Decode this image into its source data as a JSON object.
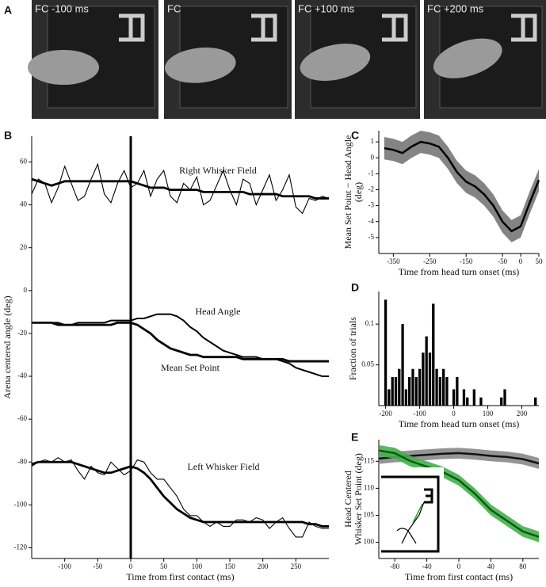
{
  "panels": [
    "A",
    "B",
    "C",
    "D",
    "E"
  ],
  "frames": [
    "FC  -100 ms",
    "FC",
    "FC  +100 ms",
    "FC  +200 ms"
  ],
  "chart_data": [
    {
      "type": "line",
      "xlabel": "Time from first contact (ms)",
      "ylabel": "Arena centered angle (deg)",
      "annotations": [
        "Right Whisker Field",
        "Head Angle",
        "Mean Set Point",
        "Left Whisker Field"
      ],
      "vline": 0,
      "xlim": [
        -150,
        300
      ],
      "xticks": [
        -100,
        -50,
        0,
        50,
        100,
        150,
        200,
        250
      ],
      "ylim": [
        -125,
        72
      ],
      "yticks": [
        60,
        40,
        20,
        0,
        -20,
        -40,
        -60,
        -80,
        -100,
        -120
      ],
      "x": [
        -150,
        -140,
        -130,
        -120,
        -110,
        -100,
        -90,
        -80,
        -70,
        -60,
        -50,
        -40,
        -30,
        -20,
        -10,
        0,
        10,
        20,
        30,
        40,
        50,
        60,
        70,
        80,
        90,
        100,
        110,
        120,
        130,
        140,
        150,
        160,
        170,
        180,
        190,
        200,
        210,
        220,
        230,
        240,
        250,
        260,
        270,
        280,
        290,
        300
      ],
      "series": [
        {
          "color": "#000",
          "values": [
            45,
            52,
            50,
            41,
            48,
            58,
            50,
            42,
            44,
            52,
            59,
            45,
            41,
            50,
            56,
            48,
            50,
            56,
            44,
            52,
            56,
            44,
            41,
            50,
            47,
            53,
            40,
            42,
            49,
            56,
            47,
            40,
            52,
            50,
            40,
            47,
            54,
            42,
            47,
            54,
            39,
            36,
            43,
            42,
            44,
            43
          ]
        },
        {
          "color": "#000",
          "values": [
            52,
            51,
            50,
            49,
            50,
            51,
            51,
            51,
            51,
            51,
            51,
            51,
            51,
            51,
            51,
            51,
            50,
            49,
            48,
            48,
            48,
            47,
            47,
            47,
            47,
            47,
            46,
            46,
            46,
            46,
            46,
            46,
            46,
            45,
            45,
            45,
            45,
            45,
            44,
            44,
            44,
            44,
            44,
            43,
            43,
            43
          ]
        },
        {
          "color": "#000",
          "values": [
            -15,
            -15,
            -15,
            -15,
            -15,
            -16,
            -16,
            -15,
            -15,
            -15,
            -15,
            -15,
            -14,
            -14,
            -14,
            -14,
            -13,
            -13,
            -12,
            -11,
            -11,
            -11,
            -12,
            -14,
            -17,
            -19,
            -22,
            -24,
            -26,
            -28,
            -29,
            -30,
            -31,
            -31,
            -31,
            -32,
            -32,
            -32,
            -33,
            -34,
            -36,
            -37,
            -38,
            -39,
            -40,
            -40
          ]
        },
        {
          "color": "#000",
          "values": [
            -15,
            -15,
            -15,
            -15,
            -16,
            -16,
            -16,
            -16,
            -16,
            -16,
            -16,
            -16,
            -16,
            -15,
            -15,
            -15,
            -16,
            -18,
            -20,
            -23,
            -25,
            -27,
            -28,
            -29,
            -30,
            -30,
            -31,
            -31,
            -31,
            -31,
            -31,
            -31,
            -32,
            -32,
            -32,
            -32,
            -32,
            -32,
            -32,
            -33,
            -33,
            -33,
            -33,
            -33,
            -33,
            -33
          ]
        },
        {
          "color": "#000",
          "values": [
            -82,
            -80,
            -79,
            -80,
            -78,
            -80,
            -79,
            -84,
            -88,
            -82,
            -85,
            -86,
            -80,
            -83,
            -86,
            -84,
            -79,
            -80,
            -85,
            -88,
            -88,
            -92,
            -96,
            -102,
            -105,
            -105,
            -108,
            -110,
            -108,
            -110,
            -110,
            -107,
            -107,
            -108,
            -106,
            -107,
            -111,
            -108,
            -106,
            -111,
            -115,
            -115,
            -108,
            -110,
            -111,
            -111
          ]
        },
        {
          "color": "#000",
          "values": [
            -81,
            -80,
            -80,
            -80,
            -80,
            -80,
            -80,
            -81,
            -82,
            -83,
            -84,
            -85,
            -85,
            -84,
            -83,
            -82,
            -83,
            -85,
            -88,
            -92,
            -96,
            -99,
            -102,
            -104,
            -106,
            -107,
            -108,
            -108,
            -108,
            -108,
            -108,
            -108,
            -108,
            -108,
            -108,
            -108,
            -108,
            -108,
            -108,
            -108,
            -108,
            -108,
            -109,
            -109,
            -110,
            -110
          ]
        }
      ]
    },
    {
      "type": "line",
      "xlabel": "Time from head turn onset (ms)",
      "ylabel": [
        "Mean Set Point − Head Angle",
        "(deg)"
      ],
      "xlim": [
        -390,
        50
      ],
      "xticks": [
        -350,
        -250,
        -150,
        -50,
        0,
        50
      ],
      "ylim": [
        -6,
        1.7
      ],
      "yticks": [
        1,
        0,
        -1,
        -2,
        -3,
        -4,
        -5
      ],
      "x": [
        -375,
        -350,
        -325,
        -300,
        -275,
        -250,
        -225,
        -200,
        -175,
        -150,
        -125,
        -100,
        -75,
        -50,
        -25,
        0,
        25,
        50
      ],
      "series": [
        {
          "color": "#000",
          "band": "#777",
          "values": [
            0.6,
            0.5,
            0.3,
            0.7,
            1.0,
            0.9,
            0.7,
            0.0,
            -0.9,
            -1.5,
            -1.8,
            -2.3,
            -3.0,
            -4.0,
            -4.6,
            -4.3,
            -2.8,
            -1.4
          ],
          "errors": [
            0.7,
            0.7,
            0.7,
            0.7,
            0.7,
            0.7,
            0.7,
            0.7,
            0.7,
            0.7,
            0.7,
            0.7,
            0.7,
            0.7,
            0.7,
            0.7,
            0.7,
            0.7
          ]
        }
      ]
    },
    {
      "type": "histogram",
      "xlabel": "Time from head turn onset (ms)",
      "ylabel": "Fraction of trials",
      "xlim": [
        -220,
        250
      ],
      "xticks": [
        -200,
        -100,
        0,
        100,
        200
      ],
      "ylim": [
        0,
        0.14
      ],
      "yticks": [
        0.05,
        0.1
      ],
      "color": "#000",
      "bins": [
        -205,
        -195,
        -185,
        -175,
        -165,
        -155,
        -145,
        -135,
        -125,
        -115,
        -105,
        -95,
        -85,
        -75,
        -65,
        -55,
        -45,
        -35,
        -25,
        -15,
        -5,
        5,
        15,
        25,
        35,
        45,
        55,
        65,
        75,
        85,
        95,
        105,
        115,
        125,
        135,
        145,
        155,
        165,
        175,
        185,
        195,
        205,
        215,
        225,
        235,
        245
      ],
      "counts": [
        0.13,
        0.02,
        0.035,
        0.035,
        0.045,
        0.1,
        0.02,
        0.035,
        0.045,
        0.035,
        0.045,
        0.065,
        0.085,
        0.065,
        0.125,
        0.045,
        0.035,
        0.045,
        0.035,
        0,
        0.02,
        0.035,
        0,
        0.02,
        0.01,
        0,
        0.02,
        0,
        0.01,
        0,
        0,
        0,
        0,
        0,
        0.01,
        0.02,
        0,
        0,
        0,
        0,
        0,
        0,
        0,
        0,
        0.01
      ]
    },
    {
      "type": "line",
      "xlabel": "Time from first contact (ms)",
      "ylabel": [
        "Head Centered",
        "Whisker Set  Point (deg)"
      ],
      "xlim": [
        -100,
        100
      ],
      "xticks": [
        -80,
        -40,
        0,
        40,
        80
      ],
      "ylim": [
        97,
        119
      ],
      "yticks": [
        100,
        105,
        110,
        115
      ],
      "x": [
        -100,
        -80,
        -60,
        -40,
        -20,
        0,
        20,
        40,
        60,
        80,
        100
      ],
      "series": [
        {
          "color": "#111",
          "band": "#888",
          "values": [
            115.5,
            115.8,
            116,
            116.2,
            116.4,
            116.5,
            116.3,
            116,
            115.8,
            115.4,
            114.6
          ],
          "errors": [
            1,
            1,
            1,
            1,
            1,
            1,
            1,
            1,
            1,
            1,
            1
          ]
        },
        {
          "color": "#0a5a1a",
          "band": "#45b049",
          "values": [
            117,
            116.5,
            115,
            114,
            113,
            111.5,
            109,
            106,
            104,
            102,
            101
          ],
          "errors": [
            1,
            1,
            1,
            1,
            1,
            1,
            1,
            1,
            1,
            1,
            1
          ]
        }
      ]
    }
  ]
}
